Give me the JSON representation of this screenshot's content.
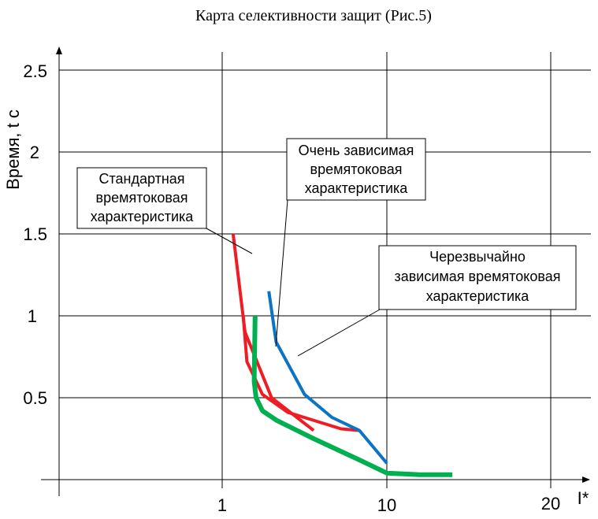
{
  "chart_data": {
    "type": "line",
    "title": "Карта селективности защит (Рис.5)",
    "xlabel": "I*",
    "ylabel": "Время, t c",
    "x_ticks": [
      "1",
      "10",
      "20"
    ],
    "y_ticks": [
      "0.5",
      "1",
      "1.5",
      "2",
      "2.5"
    ],
    "ylim": [
      0,
      2.5
    ],
    "grid": true,
    "colors": {
      "standard": "#ee1c24",
      "very_inverse": "#0b74c4",
      "extremely_inverse": "#00b050",
      "grid": "#000000"
    },
    "series": [
      {
        "key": "standard",
        "color": "#ee1c24",
        "x": [
          1.6,
          2.25,
          3.7,
          6.0
        ],
        "y": [
          1.5,
          0.9,
          0.5,
          0.3
        ],
        "width": 4
      },
      {
        "key": "standard_b",
        "color": "#ee1c24",
        "x": [
          2.15,
          2.35,
          3.2,
          4.6,
          7.5,
          8.5
        ],
        "y": [
          1.0,
          0.72,
          0.52,
          0.41,
          0.31,
          0.3
        ],
        "width": 4
      },
      {
        "key": "very_inverse",
        "color": "#0b74c4",
        "x": [
          3.55,
          3.95,
          5.5,
          7.0,
          8.5,
          10.0
        ],
        "y": [
          1.15,
          0.84,
          0.52,
          0.38,
          0.3,
          0.1
        ],
        "width": 4
      },
      {
        "key": "extremely_inverse",
        "color": "#00b050",
        "x": [
          2.8,
          2.75,
          2.85,
          3.2,
          4.0,
          6.0,
          8.5,
          10.0,
          12.0,
          14.0
        ],
        "y": [
          1.0,
          0.6,
          0.5,
          0.42,
          0.36,
          0.25,
          0.12,
          0.04,
          0.03,
          0.03
        ],
        "width": 6
      }
    ],
    "annotations": [
      {
        "key": "standard",
        "lines": [
          "Стандартная",
          "времятоковая",
          "характеристика"
        ]
      },
      {
        "key": "very_inverse",
        "lines": [
          "Очень зависимая",
          "времятоковая",
          "характеристика"
        ]
      },
      {
        "key": "extremely_inverse",
        "lines": [
          "Черезвычайно",
          "зависимая времятоковая",
          "характеристика"
        ]
      }
    ]
  }
}
